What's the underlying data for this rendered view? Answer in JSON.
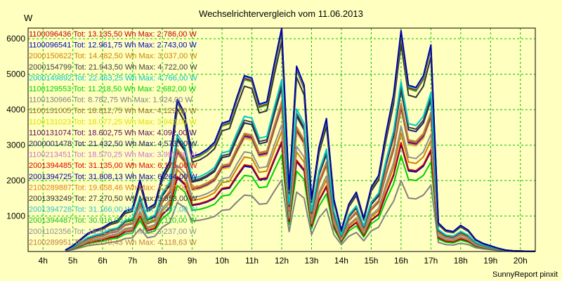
{
  "chart_data": {
    "type": "line",
    "title": "Wechselrichtervergleich vom 11.06.2013",
    "ylabel": "W",
    "xlabel": "",
    "footer": "SunnyReport pinxit",
    "ylim": [
      0,
      6300
    ],
    "xlim": [
      3.5,
      20.5
    ],
    "yticks": [
      1000,
      2000,
      3000,
      4000,
      5000,
      6000
    ],
    "xticks": [
      {
        "v": 4,
        "l": "4h"
      },
      {
        "v": 5,
        "l": "5h"
      },
      {
        "v": 6,
        "l": "6h"
      },
      {
        "v": 7,
        "l": "7h"
      },
      {
        "v": 8,
        "l": "8h"
      },
      {
        "v": 9,
        "l": "9h"
      },
      {
        "v": 10,
        "l": "10h"
      },
      {
        "v": 11,
        "l": "11h"
      },
      {
        "v": 12,
        "l": "12h"
      },
      {
        "v": 13,
        "l": "13h"
      },
      {
        "v": 14,
        "l": "14h"
      },
      {
        "v": 15,
        "l": "15h"
      },
      {
        "v": 16,
        "l": "16h"
      },
      {
        "v": 17,
        "l": "17h"
      },
      {
        "v": 18,
        "l": "18h"
      },
      {
        "v": 19,
        "l": "19h"
      },
      {
        "v": 20,
        "l": "20h"
      }
    ],
    "grid": true,
    "legend_position": "top-left",
    "x": [
      4.75,
      5.0,
      5.25,
      5.5,
      5.75,
      6.0,
      6.25,
      6.5,
      6.75,
      7.0,
      7.25,
      7.5,
      7.75,
      8.0,
      8.25,
      8.5,
      8.75,
      9.0,
      9.25,
      9.5,
      9.75,
      10.0,
      10.25,
      10.5,
      10.75,
      11.0,
      11.25,
      11.5,
      11.75,
      12.0,
      12.25,
      12.5,
      12.75,
      13.0,
      13.25,
      13.5,
      13.75,
      14.0,
      14.25,
      14.5,
      14.75,
      15.0,
      15.25,
      15.5,
      15.75,
      16.0,
      16.25,
      16.5,
      16.75,
      17.0,
      17.25,
      17.5,
      17.75,
      18.0,
      18.25,
      18.5,
      18.75,
      19.0,
      19.25,
      19.5,
      19.75,
      20.0,
      20.25,
      20.5
    ],
    "reference_profile": [
      30,
      120,
      250,
      380,
      450,
      500,
      600,
      650,
      850,
      900,
      1500,
      900,
      1000,
      1600,
      1900,
      3200,
      2900,
      2000,
      2050,
      2150,
      2300,
      2700,
      2750,
      3250,
      3700,
      3650,
      3100,
      3150,
      3950,
      4700,
      1300,
      3900,
      3500,
      1100,
      2200,
      2800,
      1100,
      450,
      1000,
      1250,
      700,
      1350,
      1600,
      2500,
      3300,
      4650,
      3500,
      3450,
      3700,
      4350,
      600,
      450,
      420,
      550,
      450,
      250,
      170,
      120,
      70,
      30,
      15,
      10,
      5,
      5
    ],
    "series": [
      {
        "name": "1100096436",
        "tot": "Tot: 13.135,50 Wh",
        "max": "Max: 2.786,00 W",
        "color": "#c00000",
        "scale": 0.66
      },
      {
        "name": "1100096541",
        "tot": "Tot: 12.961,75 Wh",
        "max": "Max: 2.743,00 W",
        "color": "#0000c0",
        "scale": 0.65
      },
      {
        "name": "2000150622",
        "tot": "Tot: 14.482,50 Wh",
        "max": "Max: 3.037,00 W",
        "color": "#d08000",
        "scale": 0.72
      },
      {
        "name": "2000154799",
        "tot": "Tot: 21.943,50 Wh",
        "max": "Max: 4.722,00 W",
        "color": "#404040",
        "scale": 1.0
      },
      {
        "name": "2000149892",
        "tot": "Tot: 22.463,25 Wh",
        "max": "Max: 4.766,00 W",
        "color": "#00c8c8",
        "scale": 1.03
      },
      {
        "name": "1100129553",
        "tot": "Tot: 11.218,50 Wh",
        "max": "Max: 2.682,00 W",
        "color": "#00d000",
        "scale": 0.58
      },
      {
        "name": "1100130966",
        "tot": "Tot: 8.782,75 Wh",
        "max": "Max: 1.924,00 W",
        "color": "#808080",
        "scale": 0.43
      },
      {
        "name": "1100131005",
        "tot": "Tot: 18.812,75 Wh",
        "max": "Max: 4.129,00 W",
        "color": "#a07020",
        "scale": 0.89
      },
      {
        "name": "1100131023",
        "tot": "Tot: 18.077,25 Wh",
        "max": "Max: 3.942,00 W",
        "color": "#e0e000",
        "scale": 0.86
      },
      {
        "name": "1100131074",
        "tot": "Tot: 18.602,75 Wh",
        "max": "Max: 4.092,00 W",
        "color": "#600060",
        "scale": 0.88
      },
      {
        "name": "2000001478",
        "tot": "Tot: 21.432,50 Wh",
        "max": "Max: 4.573,00 W",
        "color": "#202060",
        "scale": 0.98
      },
      {
        "name": "1100213451",
        "tot": "Tot: 18.570,25 Wh",
        "max": "Max: 3.991,00 W",
        "color": "#d070d0",
        "scale": 0.87
      },
      {
        "name": "2001394485",
        "tot": "Tot: 31.135,00 Wh",
        "max": "Max: 6.175,00 W",
        "color": "#e00000",
        "scale": 1.32
      },
      {
        "name": "2001394725",
        "tot": "Tot: 31.808,13 Wh",
        "max": "Max: 6.264,00 W",
        "color": "#0000a0",
        "scale": 1.34
      },
      {
        "name": "2100289887",
        "tot": "Tot: 19.658,46 Wh",
        "max": "Max: 4.174,00 W",
        "color": "#e08020",
        "scale": 0.9
      },
      {
        "name": "2001393249",
        "tot": "Tot: 27.270,50 Wh",
        "max": "Max: 5.953,00 W",
        "color": "#303030",
        "scale": 1.26
      },
      {
        "name": "2001394728",
        "tot": "Tot: 31.166,00 Wh",
        "max": "Max: 6.207,00 W",
        "color": "#30c0d0",
        "scale": 1.33
      },
      {
        "name": "2001394487",
        "tot": "Tot: 30.916,00 Wh",
        "max": "Max: 6.110,00 W",
        "color": "#20c020",
        "scale": 1.31
      },
      {
        "name": "2001102356",
        "tot": "Tot: 16.917,50 Wh",
        "max": "Max: 3.237,00 W",
        "color": "#909090",
        "scale": 0.76
      },
      {
        "name": "2100289951",
        "tot": "Tot: 20.179,43 Wh",
        "max": "Max: 4.118,63 W",
        "color": "#c08040",
        "scale": 0.9
      }
    ]
  }
}
